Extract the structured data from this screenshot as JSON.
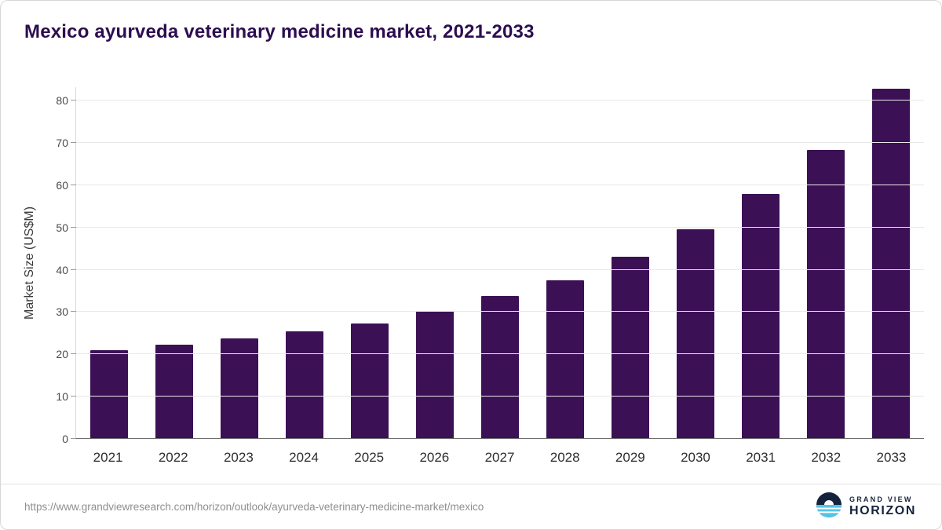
{
  "title": "Mexico ayurveda veterinary medicine market, 2021-2033",
  "chart_data": {
    "type": "bar",
    "categories": [
      "2021",
      "2022",
      "2023",
      "2024",
      "2025",
      "2026",
      "2027",
      "2028",
      "2029",
      "2030",
      "2031",
      "2032",
      "2033"
    ],
    "values": [
      21.0,
      22.3,
      23.7,
      25.5,
      27.3,
      30.3,
      33.7,
      37.5,
      43.0,
      49.5,
      58.0,
      68.3,
      82.7
    ],
    "title": "Mexico ayurveda veterinary medicine market, 2021-2033",
    "xlabel": "",
    "ylabel": "Market Size (US$M)",
    "ylim": [
      0,
      80
    ],
    "y_ticks": [
      0,
      10,
      20,
      30,
      40,
      50,
      60,
      70,
      80
    ],
    "grid": true,
    "legend": "none",
    "bar_color": "#3c1055"
  },
  "footer": {
    "source_url": "https://www.grandviewresearch.com/horizon/outlook/ayurveda-veterinary-medicine-market/mexico",
    "logo_top": "GRAND VIEW",
    "logo_bottom": "HORIZON"
  },
  "colors": {
    "title_text": "#2c0d50",
    "bar": "#3c1055",
    "gridline": "#e8e8e8",
    "logo_navy": "#15223c",
    "logo_blue": "#53c6e8"
  }
}
